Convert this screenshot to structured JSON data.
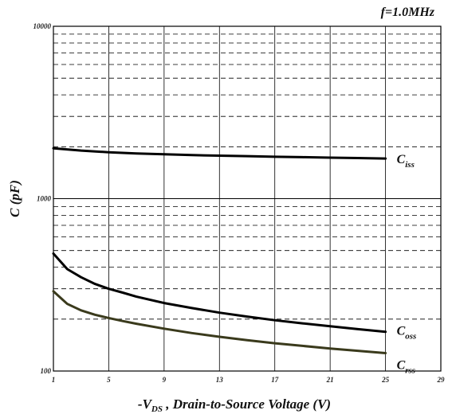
{
  "chart_data": {
    "type": "line",
    "title": "",
    "annotation": "f=1.0MHz",
    "xlabel": {
      "prefix": "-V",
      "subscript": "DS",
      "suffix": " , Drain-to-Source Voltage (V)"
    },
    "ylabel": "C (pF)",
    "xlim": [
      1,
      29
    ],
    "ylim": [
      100,
      10000
    ],
    "y_scale": "log",
    "x_ticks": [
      1,
      5,
      9,
      13,
      17,
      21,
      25,
      29
    ],
    "y_ticks": [
      100,
      1000,
      10000
    ],
    "y_tick_labels": [
      "100",
      "1000",
      "10000"
    ],
    "grid": "vertical solid at x ticks, horizontal dashed at log minor ticks",
    "series": [
      {
        "name": "C_iss",
        "label_main": "C",
        "label_sub": "iss",
        "color": "#000000",
        "x": [
          1,
          3,
          5,
          7,
          9,
          11,
          13,
          15,
          17,
          19,
          21,
          23,
          25
        ],
        "y": [
          1960,
          1900,
          1860,
          1830,
          1810,
          1790,
          1775,
          1765,
          1750,
          1740,
          1730,
          1720,
          1710
        ]
      },
      {
        "name": "C_oss",
        "label_main": "C",
        "label_sub": "oss",
        "color": "#000000",
        "x": [
          1,
          2,
          3,
          4,
          5,
          6,
          7,
          9,
          11,
          13,
          15,
          17,
          19,
          21,
          23,
          25
        ],
        "y": [
          480,
          390,
          350,
          320,
          300,
          285,
          270,
          248,
          232,
          218,
          207,
          197,
          189,
          182,
          175,
          169
        ]
      },
      {
        "name": "C_rss",
        "label_main": "C",
        "label_sub": "rss",
        "color": "#3a3a1c",
        "x": [
          1,
          2,
          3,
          4,
          5,
          6,
          7,
          9,
          11,
          13,
          15,
          17,
          19,
          21,
          23,
          25
        ],
        "y": [
          290,
          245,
          225,
          212,
          203,
          195,
          188,
          176,
          166,
          158,
          151,
          145,
          140,
          135,
          131,
          127
        ]
      }
    ]
  }
}
